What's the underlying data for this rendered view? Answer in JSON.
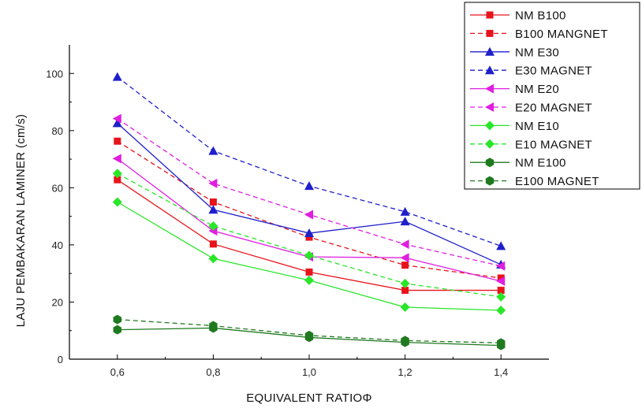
{
  "chart_data": {
    "type": "line",
    "title": "",
    "xlabel": "EQUIVALENT RATIOΦ",
    "ylabel": "LAJU  PEMBAKARAN  LAMINER (cm/s)",
    "x": [
      0.6,
      0.8,
      1.0,
      1.2,
      1.4
    ],
    "x_tick_labels": [
      "0,6",
      "0,8",
      "1,0",
      "1,2",
      "1,4"
    ],
    "xlim": [
      0.5,
      1.5
    ],
    "y_ticks": [
      0,
      20,
      40,
      60,
      80,
      100
    ],
    "ylim": [
      0,
      110
    ],
    "grid": false,
    "legend_position": "top-right",
    "series": [
      {
        "name": "NM B100",
        "color": "#e8141b",
        "dash": "solid",
        "marker": "square",
        "values": [
          62.8,
          40.3,
          30.5,
          24.1,
          24.1
        ]
      },
      {
        "name": "B100 MANGNET",
        "color": "#e8141b",
        "dash": "dashed",
        "marker": "square",
        "values": [
          76.3,
          55.0,
          42.7,
          32.9,
          28.4
        ]
      },
      {
        "name": "NM E30",
        "color": "#1f1fcc",
        "dash": "solid",
        "marker": "triangle-up",
        "values": [
          82.6,
          52.3,
          44.1,
          48.2,
          33.1
        ]
      },
      {
        "name": "E30 MAGNET",
        "color": "#1f1fcc",
        "dash": "dashed",
        "marker": "triangle-up",
        "values": [
          98.8,
          72.9,
          60.6,
          51.6,
          39.6
        ]
      },
      {
        "name": "NM E20",
        "color": "#e01ee0",
        "dash": "solid",
        "marker": "triangle-left",
        "values": [
          70.2,
          44.9,
          35.8,
          35.5,
          27.3
        ]
      },
      {
        "name": "E20 MAGNET",
        "color": "#e01ee0",
        "dash": "dashed",
        "marker": "triangle-left",
        "values": [
          84.2,
          61.5,
          50.6,
          40.2,
          32.6
        ]
      },
      {
        "name": "NM E10",
        "color": "#29e629",
        "dash": "solid",
        "marker": "diamond",
        "values": [
          55.0,
          35.2,
          27.6,
          18.2,
          17.1
        ]
      },
      {
        "name": "E10 MAGNET",
        "color": "#29e629",
        "dash": "dashed",
        "marker": "diamond",
        "values": [
          65.0,
          46.6,
          36.3,
          26.5,
          21.8
        ]
      },
      {
        "name": "NM E100",
        "color": "#1f7a1f",
        "dash": "solid",
        "marker": "hexagon",
        "values": [
          10.3,
          10.9,
          7.6,
          5.9,
          4.8
        ]
      },
      {
        "name": "E100 MAGNET",
        "color": "#1f7a1f",
        "dash": "dashed",
        "marker": "hexagon",
        "values": [
          13.9,
          11.7,
          8.3,
          6.5,
          5.7
        ]
      }
    ]
  }
}
